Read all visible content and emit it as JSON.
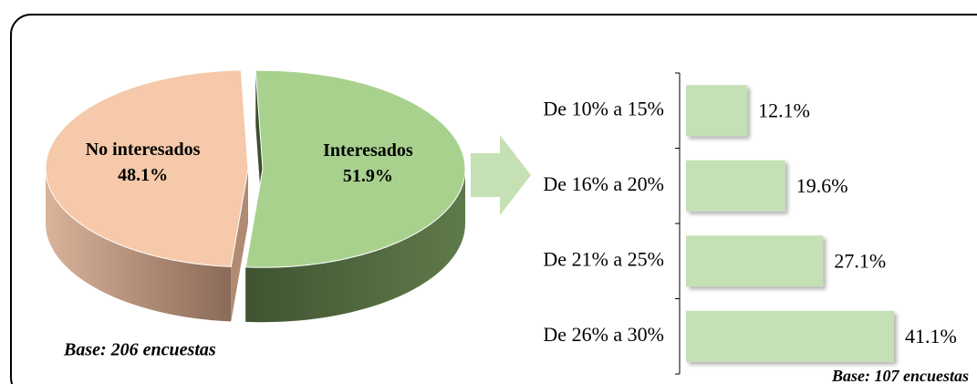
{
  "chart_data": [
    {
      "type": "pie3d",
      "categories": [
        "No interesados",
        "Interesados"
      ],
      "values": [
        48.1,
        51.9
      ],
      "value_labels": [
        "48.1%",
        "51.9%"
      ],
      "colors": [
        "#f5c9a9",
        "#a9d18e"
      ],
      "annotation": "Base: 206 encuestas"
    },
    {
      "type": "hbar",
      "categories": [
        "De 10% a 15%",
        "De 16% a 20%",
        "De 21% a 25%",
        "De 26% a 30%"
      ],
      "values": [
        12.1,
        19.6,
        27.1,
        41.1
      ],
      "value_labels": [
        "12.1%",
        "19.6%",
        "27.1%",
        "41.1%"
      ],
      "color": "#c5e0b4",
      "annotation": "Base: 107 encuestas"
    }
  ]
}
